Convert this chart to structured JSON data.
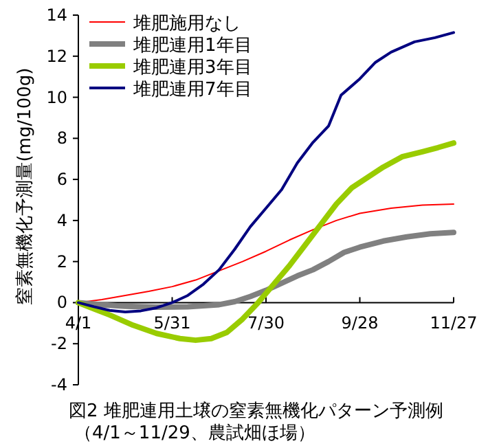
{
  "chart_data": {
    "type": "line",
    "title": "図2 堆肥連用土壌の窒素無機化パターン予測例",
    "subtitle": "（4/1～11/29、農試畑ほ場）",
    "ylabel": "窒素無機化予測量(mg/100g)",
    "xlim": [
      "--04-01",
      "--11-27"
    ],
    "xticks": [
      {
        "value": "--04-01",
        "label": "4/1"
      },
      {
        "value": "--05-31",
        "label": "5/31"
      },
      {
        "value": "--07-30",
        "label": "7/30"
      },
      {
        "value": "--09-28",
        "label": "9/28"
      },
      {
        "value": "--11-27",
        "label": "11/27"
      }
    ],
    "ylim": [
      -4,
      14
    ],
    "yticks": [
      -4,
      -2,
      0,
      2,
      4,
      6,
      8,
      10,
      12,
      14
    ],
    "legend": "top left",
    "marker": "none",
    "line_style": "solid",
    "series": [
      {
        "name": "堆肥施用なし",
        "color": "#ff0000",
        "x": [
          "--04-01",
          "--04-16",
          "--05-01",
          "--05-16",
          "--05-31",
          "--06-15",
          "--06-30",
          "--07-15",
          "--07-30",
          "--08-14",
          "--08-29",
          "--09-13",
          "--09-28",
          "--10-18",
          "--11-07",
          "--11-27"
        ],
        "values": [
          0,
          0.15,
          0.35,
          0.55,
          0.78,
          1.1,
          1.55,
          2.0,
          2.5,
          3.05,
          3.55,
          4.0,
          4.35,
          4.6,
          4.75,
          4.8
        ]
      },
      {
        "name": "堆肥連用1年目",
        "color": "#808080",
        "x": [
          "--04-01",
          "--04-16",
          "--05-01",
          "--05-21",
          "--06-10",
          "--06-30",
          "--07-10",
          "--07-20",
          "--07-30",
          "--08-09",
          "--08-19",
          "--08-29",
          "--09-08",
          "--09-18",
          "--09-28",
          "--10-13",
          "--10-28",
          "--11-12",
          "--11-27"
        ],
        "values": [
          0,
          -0.1,
          -0.18,
          -0.22,
          -0.2,
          -0.1,
          0.05,
          0.3,
          0.6,
          0.95,
          1.3,
          1.6,
          2.0,
          2.45,
          2.7,
          3.0,
          3.2,
          3.35,
          3.42
        ]
      },
      {
        "name": "堆肥連用3年目",
        "color": "#99cc00",
        "x": [
          "--04-01",
          "--04-11",
          "--04-21",
          "--05-06",
          "--05-21",
          "--06-05",
          "--06-15",
          "--06-25",
          "--07-05",
          "--07-15",
          "--07-25",
          "--08-04",
          "--08-14",
          "--08-24",
          "--09-03",
          "--09-13",
          "--09-23",
          "--10-03",
          "--10-13",
          "--10-25",
          "--11-07",
          "--11-17",
          "--11-27"
        ],
        "values": [
          0,
          -0.3,
          -0.6,
          -1.1,
          -1.5,
          -1.75,
          -1.83,
          -1.75,
          -1.45,
          -0.8,
          0.0,
          0.9,
          1.8,
          2.8,
          3.8,
          4.8,
          5.6,
          6.1,
          6.6,
          7.1,
          7.35,
          7.55,
          7.77
        ]
      },
      {
        "name": "堆肥連用7年目",
        "color": "#000080",
        "x": [
          "--04-01",
          "--04-11",
          "--04-21",
          "--05-01",
          "--05-11",
          "--05-21",
          "--05-31",
          "--06-10",
          "--06-20",
          "--06-30",
          "--07-10",
          "--07-20",
          "--07-30",
          "--08-09",
          "--08-19",
          "--08-29",
          "--09-08",
          "--09-16",
          "--09-28",
          "--10-08",
          "--10-18",
          "--11-02",
          "--11-15",
          "--11-27"
        ],
        "values": [
          0,
          -0.2,
          -0.38,
          -0.45,
          -0.4,
          -0.25,
          0.0,
          0.35,
          0.9,
          1.6,
          2.6,
          3.7,
          4.6,
          5.5,
          6.8,
          7.8,
          8.6,
          10.1,
          10.9,
          11.7,
          12.2,
          12.7,
          12.9,
          13.15
        ]
      }
    ]
  }
}
